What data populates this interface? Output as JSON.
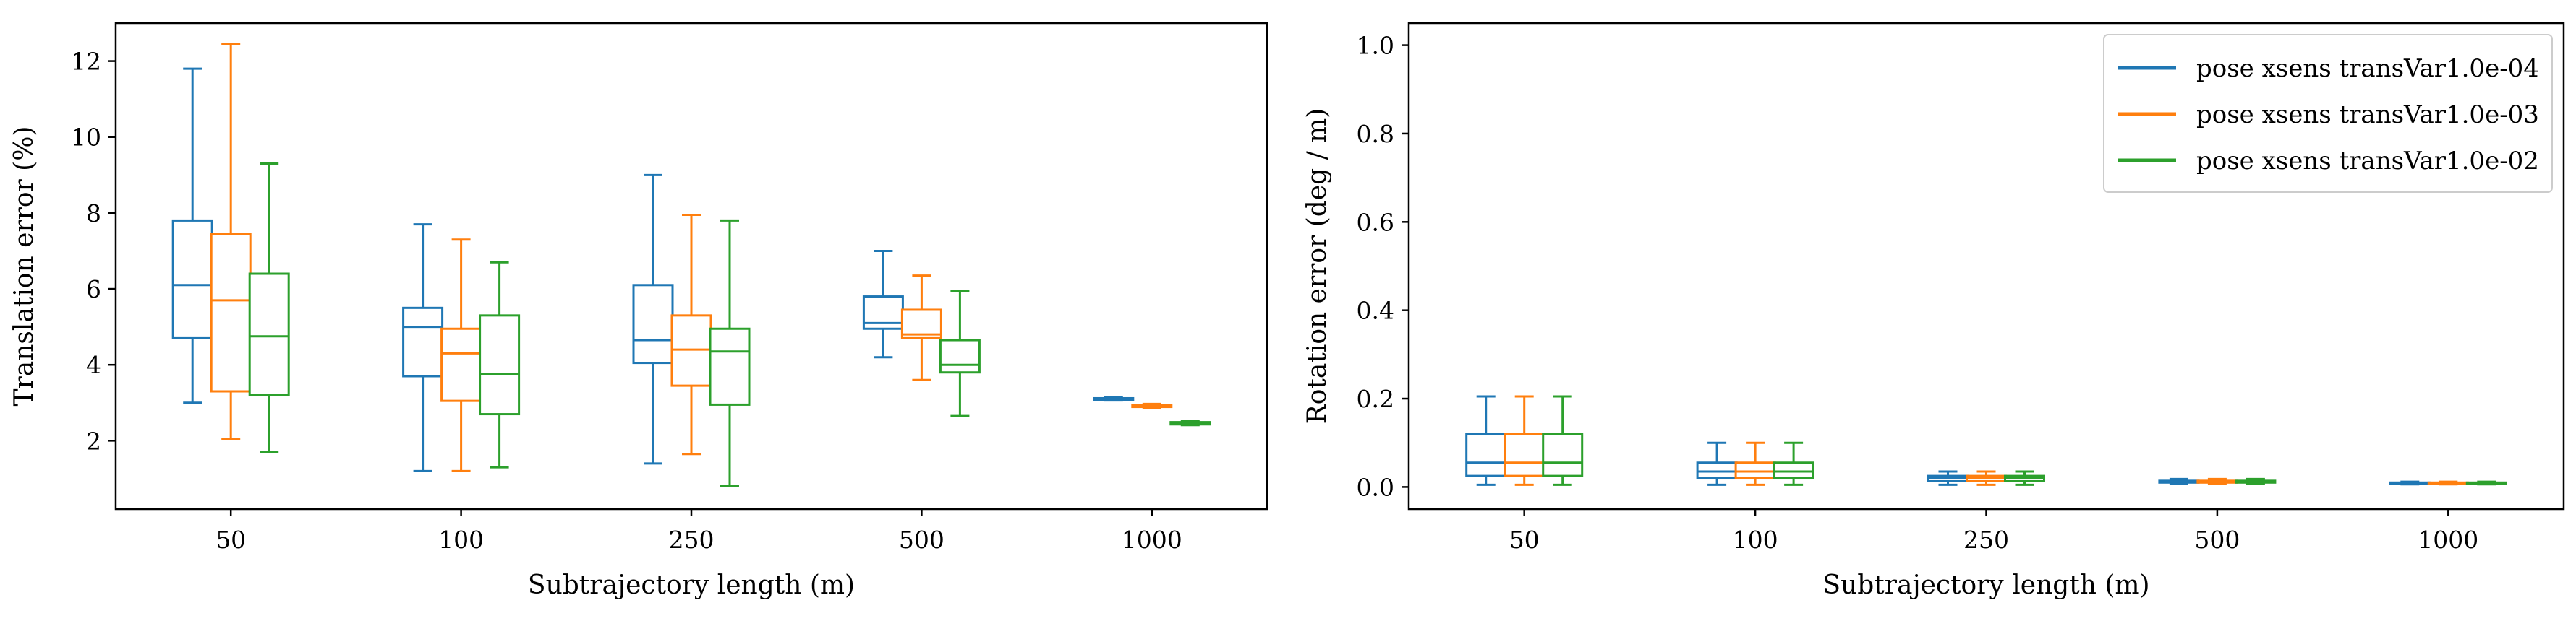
{
  "colors": {
    "series0": "#1f77b4",
    "series1": "#ff7f0e",
    "series2": "#2ca02c",
    "axis": "#000000",
    "legend_border": "#cccccc"
  },
  "chart_data": [
    {
      "type": "box",
      "xlabel": "Subtrajectory length (m)",
      "ylabel": "Translation error (%)",
      "categories": [
        "50",
        "100",
        "250",
        "500",
        "1000"
      ],
      "ylim": [
        0.2,
        13.0
      ],
      "yticks": [
        2,
        4,
        6,
        8,
        10,
        12
      ],
      "grid": false,
      "legend": null,
      "series": [
        {
          "name": "pose xsens transVar1.0e-04",
          "color_key": "series0",
          "boxes": [
            {
              "whislo": 3.0,
              "q1": 4.7,
              "med": 6.1,
              "q3": 7.8,
              "whishi": 11.8
            },
            {
              "whislo": 1.2,
              "q1": 3.7,
              "med": 5.0,
              "q3": 5.5,
              "whishi": 7.7
            },
            {
              "whislo": 1.4,
              "q1": 4.05,
              "med": 4.65,
              "q3": 6.1,
              "whishi": 9.0
            },
            {
              "whislo": 4.2,
              "q1": 4.95,
              "med": 5.1,
              "q3": 5.8,
              "whishi": 7.0
            },
            {
              "whislo": 3.06,
              "q1": 3.08,
              "med": 3.1,
              "q3": 3.12,
              "whishi": 3.14
            }
          ]
        },
        {
          "name": "pose xsens transVar1.0e-03",
          "color_key": "series1",
          "boxes": [
            {
              "whislo": 2.05,
              "q1": 3.3,
              "med": 5.7,
              "q3": 7.45,
              "whishi": 12.45
            },
            {
              "whislo": 1.2,
              "q1": 3.05,
              "med": 4.3,
              "q3": 4.95,
              "whishi": 7.3
            },
            {
              "whislo": 1.65,
              "q1": 3.45,
              "med": 4.4,
              "q3": 5.3,
              "whishi": 7.95
            },
            {
              "whislo": 3.6,
              "q1": 4.7,
              "med": 4.8,
              "q3": 5.45,
              "whishi": 6.35
            },
            {
              "whislo": 2.87,
              "q1": 2.89,
              "med": 2.91,
              "q3": 2.94,
              "whishi": 2.97
            }
          ]
        },
        {
          "name": "pose xsens transVar1.0e-02",
          "color_key": "series2",
          "boxes": [
            {
              "whislo": 1.7,
              "q1": 3.2,
              "med": 4.75,
              "q3": 6.4,
              "whishi": 9.3
            },
            {
              "whislo": 1.3,
              "q1": 2.7,
              "med": 3.75,
              "q3": 5.3,
              "whishi": 6.7
            },
            {
              "whislo": 0.8,
              "q1": 2.95,
              "med": 4.35,
              "q3": 4.95,
              "whishi": 7.8
            },
            {
              "whislo": 2.65,
              "q1": 3.8,
              "med": 4.0,
              "q3": 4.65,
              "whishi": 5.95
            },
            {
              "whislo": 2.41,
              "q1": 2.43,
              "med": 2.46,
              "q3": 2.49,
              "whishi": 2.52
            }
          ]
        }
      ]
    },
    {
      "type": "box",
      "xlabel": "Subtrajectory length (m)",
      "ylabel": "Rotation error (deg / m)",
      "categories": [
        "50",
        "100",
        "250",
        "500",
        "1000"
      ],
      "ylim": [
        -0.05,
        1.05
      ],
      "yticks": [
        "0.0",
        "0.2",
        "0.4",
        "0.6",
        "0.8",
        "1.0"
      ],
      "grid": false,
      "legend": "top-right",
      "series": [
        {
          "name": "pose xsens transVar1.0e-04",
          "color_key": "series0",
          "boxes": [
            {
              "whislo": 0.005,
              "q1": 0.025,
              "med": 0.055,
              "q3": 0.12,
              "whishi": 0.205
            },
            {
              "whislo": 0.005,
              "q1": 0.02,
              "med": 0.035,
              "q3": 0.055,
              "whishi": 0.1
            },
            {
              "whislo": 0.005,
              "q1": 0.013,
              "med": 0.02,
              "q3": 0.025,
              "whishi": 0.035
            },
            {
              "whislo": 0.008,
              "q1": 0.01,
              "med": 0.012,
              "q3": 0.014,
              "whishi": 0.018
            },
            {
              "whislo": 0.006,
              "q1": 0.008,
              "med": 0.009,
              "q3": 0.01,
              "whishi": 0.012
            }
          ]
        },
        {
          "name": "pose xsens transVar1.0e-03",
          "color_key": "series1",
          "boxes": [
            {
              "whislo": 0.005,
              "q1": 0.025,
              "med": 0.055,
              "q3": 0.12,
              "whishi": 0.205
            },
            {
              "whislo": 0.005,
              "q1": 0.02,
              "med": 0.035,
              "q3": 0.055,
              "whishi": 0.1
            },
            {
              "whislo": 0.005,
              "q1": 0.013,
              "med": 0.02,
              "q3": 0.025,
              "whishi": 0.035
            },
            {
              "whislo": 0.008,
              "q1": 0.01,
              "med": 0.012,
              "q3": 0.014,
              "whishi": 0.018
            },
            {
              "whislo": 0.006,
              "q1": 0.008,
              "med": 0.009,
              "q3": 0.01,
              "whishi": 0.012
            }
          ]
        },
        {
          "name": "pose xsens transVar1.0e-02",
          "color_key": "series2",
          "boxes": [
            {
              "whislo": 0.005,
              "q1": 0.025,
              "med": 0.055,
              "q3": 0.12,
              "whishi": 0.205
            },
            {
              "whislo": 0.005,
              "q1": 0.02,
              "med": 0.035,
              "q3": 0.055,
              "whishi": 0.1
            },
            {
              "whislo": 0.005,
              "q1": 0.013,
              "med": 0.02,
              "q3": 0.025,
              "whishi": 0.035
            },
            {
              "whislo": 0.008,
              "q1": 0.01,
              "med": 0.012,
              "q3": 0.014,
              "whishi": 0.018
            },
            {
              "whislo": 0.006,
              "q1": 0.008,
              "med": 0.009,
              "q3": 0.01,
              "whishi": 0.012
            }
          ]
        }
      ]
    }
  ]
}
